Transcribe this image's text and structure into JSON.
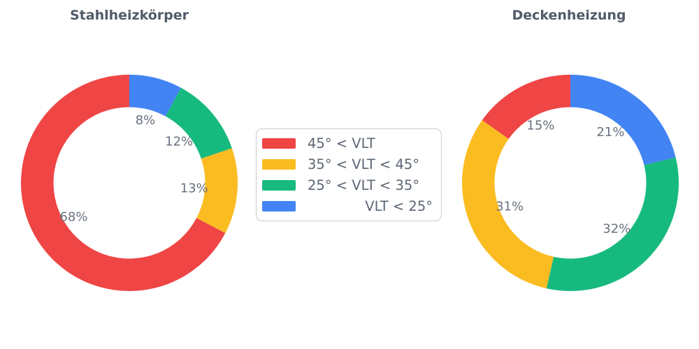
{
  "palette": {
    "red": "#ef4545",
    "yellow": "#fbbc22",
    "green": "#17ba7e",
    "blue": "#4284f3"
  },
  "text_colors": {
    "title": "#515b69",
    "slice_label": "#68717e",
    "legend_label": "#5b6574"
  },
  "legend": {
    "position": "center",
    "items": [
      {
        "label": "45° < VLT",
        "color": "red"
      },
      {
        "label": "35° < VLT < 45°",
        "color": "yellow"
      },
      {
        "label": "25° < VLT < 35°",
        "color": "green"
      },
      {
        "label": "VLT < 25°",
        "color": "blue"
      }
    ]
  },
  "chart_data": [
    {
      "type": "pie",
      "subtype": "donut",
      "title": "Stahlheizkörper",
      "labels": [
        "45° < VLT",
        "35° < VLT < 45°",
        "25° < VLT < 35°",
        "VLT < 25°"
      ],
      "values": [
        68,
        13,
        12,
        8
      ],
      "value_unit": "percent",
      "pct_labels": [
        "68%",
        "13%",
        "12%",
        "8%"
      ],
      "colors": [
        "red",
        "yellow",
        "green",
        "blue"
      ],
      "start_angle_deg": 90,
      "direction": "counterclockwise",
      "inner_radius_ratio": 0.7,
      "label_radius_ratio": 0.6
    },
    {
      "type": "pie",
      "subtype": "donut",
      "title": "Deckenheizung",
      "labels": [
        "45° < VLT",
        "35° < VLT < 45°",
        "25° < VLT < 35°",
        "VLT < 25°"
      ],
      "values": [
        15,
        31,
        32,
        21
      ],
      "value_unit": "percent",
      "pct_labels": [
        "15%",
        "31%",
        "32%",
        "21%"
      ],
      "colors": [
        "red",
        "yellow",
        "green",
        "blue"
      ],
      "start_angle_deg": 90,
      "direction": "counterclockwise",
      "inner_radius_ratio": 0.7,
      "label_radius_ratio": 0.6
    }
  ]
}
